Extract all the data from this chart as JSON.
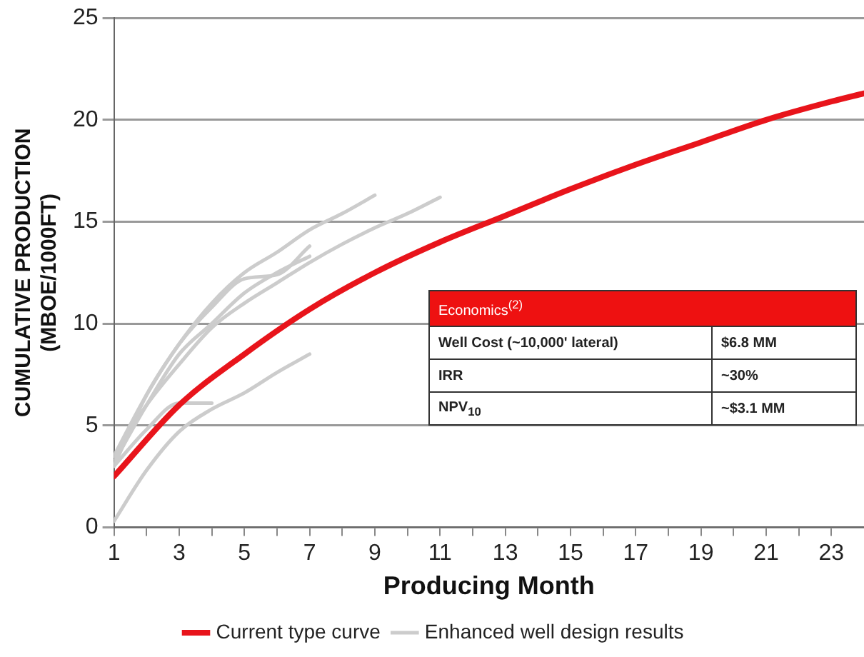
{
  "chart_data": {
    "type": "line",
    "xlabel": "Producing Month",
    "ylabel": "CUMULATIVE PRODUCTION\n(MBOE/1000FT)",
    "xlim": [
      1,
      24
    ],
    "ylim": [
      0,
      25
    ],
    "xticks": [
      1,
      {
        "value": 2,
        "label": null
      },
      3,
      {
        "value": 4,
        "label": null
      },
      5,
      {
        "value": 6,
        "label": null
      },
      7,
      {
        "value": 8,
        "label": null
      },
      9,
      {
        "value": 10,
        "label": null
      },
      11,
      {
        "value": 12,
        "label": null
      },
      13,
      {
        "value": 14,
        "label": null
      },
      15,
      {
        "value": 16,
        "label": null
      },
      17,
      {
        "value": 18,
        "label": null
      },
      19,
      {
        "value": 20,
        "label": null
      },
      21,
      {
        "value": 22,
        "label": null
      },
      23
    ],
    "yticks": [
      0,
      5,
      10,
      15,
      20,
      25
    ],
    "grid": "y",
    "legend": "bottom",
    "marker": "none",
    "line_style": "solid",
    "series": [
      {
        "name": "Enhanced well design results",
        "color": "#cccccc",
        "x": [
          1,
          2,
          3,
          4,
          5,
          6,
          7,
          8,
          9
        ],
        "values": [
          3,
          6.5,
          9,
          11,
          12.5,
          13.5,
          14.6,
          15.4,
          16.3
        ]
      },
      {
        "color": "#cccccc",
        "x": [
          1,
          2,
          3,
          4,
          5,
          6,
          7,
          8,
          9,
          10,
          11
        ],
        "values": [
          3.5,
          6,
          8,
          9.8,
          11,
          12,
          13,
          13.9,
          14.7,
          15.4,
          16.2
        ]
      },
      {
        "color": "#cccccc",
        "x": [
          1,
          2,
          3,
          4,
          5,
          6,
          7
        ],
        "values": [
          3.5,
          6.5,
          9,
          10.8,
          12.2,
          12.4,
          13.8
        ]
      },
      {
        "color": "#cccccc",
        "x": [
          1,
          2,
          3,
          4,
          5,
          6,
          7
        ],
        "values": [
          3.2,
          6,
          8.5,
          10,
          11.5,
          12.5,
          13.3
        ]
      },
      {
        "color": "#cccccc",
        "x": [
          1,
          2,
          3,
          4,
          5,
          6,
          7
        ],
        "values": [
          0.3,
          2.8,
          4.7,
          5.8,
          6.6,
          7.6,
          8.5
        ]
      },
      {
        "color": "#cccccc",
        "x": [
          1,
          2,
          3,
          4
        ],
        "values": [
          3,
          4.8,
          6.1,
          6.1
        ]
      },
      {
        "name": "Current type curve",
        "color": "#e8141b",
        "x": [
          1,
          3,
          5,
          7,
          9,
          11,
          13,
          15,
          17,
          19,
          21,
          23,
          24
        ],
        "values": [
          2.5,
          6,
          8.5,
          10.7,
          12.5,
          14,
          15.3,
          16.6,
          17.8,
          18.9,
          20,
          20.9,
          21.3
        ]
      }
    ],
    "annotations": [
      "Economics$^{(2)}$",
      "Well Cost (~10,000' lateral)",
      "$6.8 MM",
      "IRR",
      "~30%",
      "NPV$_{10}$",
      "~$3.1 MM"
    ]
  }
}
